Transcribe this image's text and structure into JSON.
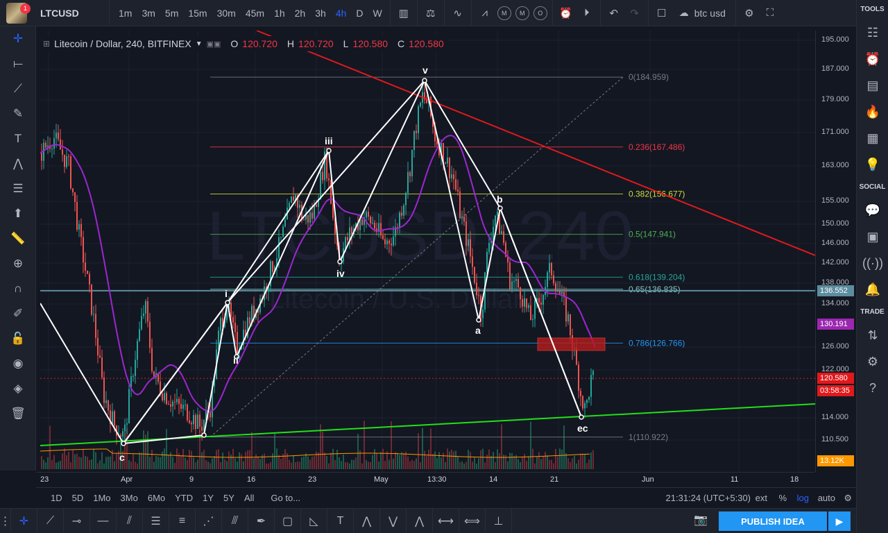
{
  "topbar": {
    "notification_count": "1",
    "symbol": "LTCUSD",
    "intervals": [
      "1m",
      "3m",
      "5m",
      "15m",
      "30m",
      "45m",
      "1h",
      "2h",
      "3h",
      "4h",
      "D",
      "W"
    ],
    "active_interval": "4h",
    "indicator_letters": [
      "M",
      "M",
      "O"
    ],
    "compare_text": "btc usd"
  },
  "legend": {
    "title": "Litecoin / Dollar, 240, BITFINEX",
    "open_label": "O",
    "open": "120.720",
    "high_label": "H",
    "high": "120.720",
    "low_label": "L",
    "low": "120.580",
    "close_label": "C",
    "close": "120.580"
  },
  "watermark": {
    "main": "LTCUSD, 240",
    "sub": "Litecoin / U.S. Dollar"
  },
  "price_axis": {
    "ticks": [
      "195.000",
      "187.000",
      "179.000",
      "171.000",
      "163.000",
      "155.000",
      "150.000",
      "146.000",
      "142.000",
      "138.000",
      "134.000",
      "126.000",
      "122.000",
      "114.000",
      "110.500"
    ],
    "tags": [
      {
        "value": "136.552",
        "color": "#5d8c9e"
      },
      {
        "value": "130.191",
        "color": "#9c27b0"
      },
      {
        "value": "120.580",
        "color": "#e0191c"
      },
      {
        "value": "03:58:35",
        "color": "#e0191c"
      },
      {
        "value": "13.12K",
        "color": "#ff9800"
      }
    ]
  },
  "fib_levels": [
    {
      "label": "0(184.959)",
      "price": 184.959,
      "color": "#787b86"
    },
    {
      "label": "0.236(167.486)",
      "price": 167.486,
      "color": "#f23645"
    },
    {
      "label": "0.382(156.677)",
      "price": 156.677,
      "color": "#cddc39"
    },
    {
      "label": "0.5(147.941)",
      "price": 147.941,
      "color": "#4caf50"
    },
    {
      "label": "0.618(139.204)",
      "price": 139.204,
      "color": "#26a69a"
    },
    {
      "label": "0.65(136.835)",
      "price": 136.835,
      "color": "#80cbc4"
    },
    {
      "label": "0.786(126.766)",
      "price": 126.766,
      "color": "#2196f3"
    },
    {
      "label": "1(110.922)",
      "price": 110.922,
      "color": "#787b86"
    }
  ],
  "wave_labels": [
    {
      "text": "c",
      "x_date": "Apr 1",
      "price": 110.2
    },
    {
      "text": "i",
      "x_date": "Apr 12",
      "price": 135.6
    },
    {
      "text": "ii",
      "x_date": "Apr 13",
      "price": 123.5
    },
    {
      "text": "iii",
      "x_date": "Apr 24",
      "price": 167.5
    },
    {
      "text": "iv",
      "x_date": "Apr 26",
      "price": 141.5
    },
    {
      "text": "v",
      "x_date": "May 4",
      "price": 186.0
    },
    {
      "text": "a",
      "x_date": "May 12",
      "price": 131.0
    },
    {
      "text": "b",
      "x_date": "May 15",
      "price": 153.5
    },
    {
      "text": "ec",
      "x_date": "May 24",
      "price": 112.5
    }
  ],
  "time_axis": {
    "labels": [
      "23",
      "Apr",
      "9",
      "16",
      "23",
      "May",
      "13:30",
      "14",
      "21",
      "Jun",
      "11",
      "18"
    ]
  },
  "range_bar": {
    "ranges": [
      "1D",
      "5D",
      "1Mo",
      "3Mo",
      "6Mo",
      "YTD",
      "1Y",
      "5Y",
      "All"
    ],
    "goto": "Go to...",
    "clock": "21:31:24 (UTC+5:30)",
    "ext": "ext",
    "percent": "%",
    "log": "log",
    "auto": "auto"
  },
  "bottom": {
    "publish": "PUBLISH IDEA"
  },
  "right_panel": {
    "tools": "TOOLS",
    "social": "SOCIAL",
    "trade": "TRADE"
  },
  "chart_data": {
    "type": "candlestick",
    "symbol": "Litecoin / Dollar, 240, BITFINEX",
    "y_scale": "log",
    "ylim": [
      108,
      198
    ],
    "last_price": 120.58,
    "indicators": [
      "moving average",
      "volume",
      "volume moving average"
    ]
  }
}
